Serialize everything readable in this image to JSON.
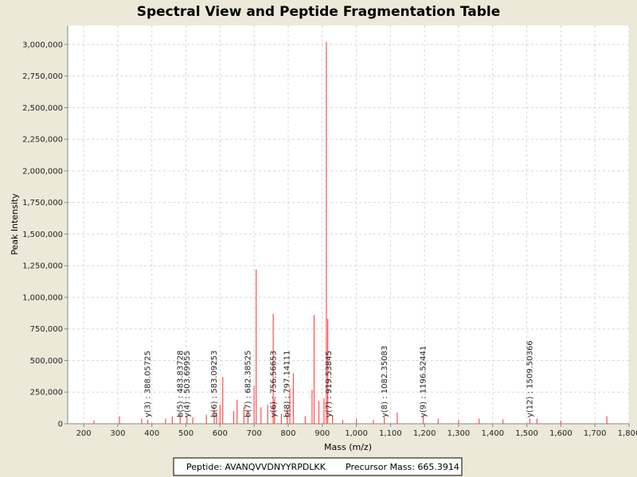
{
  "chart_data": {
    "type": "spectrum",
    "title": "Spectral View and Peptide Fragmentation Table",
    "x_label": "Mass (m/z)",
    "y_label": "Peak Intensity",
    "color": "#ff5050",
    "grid": true,
    "xlim": [
      153,
      1800
    ],
    "ylim": [
      0,
      3150000
    ],
    "xticks": [
      200,
      300,
      400,
      500,
      600,
      700,
      800,
      900,
      {
        "value": 1000,
        "label": "1,000"
      },
      {
        "value": 1100,
        "label": "1,100"
      },
      {
        "value": 1200,
        "label": "1,200"
      },
      {
        "value": 1300,
        "label": "1,300"
      },
      {
        "value": 1400,
        "label": "1,400"
      },
      {
        "value": 1500,
        "label": "1,500"
      },
      {
        "value": 1600,
        "label": "1,600"
      },
      {
        "value": 1700,
        "label": "1,700"
      },
      {
        "value": 1800,
        "label": "1,800"
      }
    ],
    "yticks": [
      0,
      {
        "value": 250000,
        "label": "250,000"
      },
      {
        "value": 500000,
        "label": "500,000"
      },
      {
        "value": 750000,
        "label": "750,000"
      },
      {
        "value": 1000000,
        "label": "1,000,000"
      },
      {
        "value": 1250000,
        "label": "1,250,000"
      },
      {
        "value": 1500000,
        "label": "1,500,000"
      },
      {
        "value": 1750000,
        "label": "1,750,000"
      },
      {
        "value": 2000000,
        "label": "2,000,000"
      },
      {
        "value": 2250000,
        "label": "2,250,000"
      },
      {
        "value": 2500000,
        "label": "2,500,000"
      },
      {
        "value": 2750000,
        "label": "2,750,000"
      },
      {
        "value": 3000000,
        "label": "3,000,000"
      }
    ],
    "x": [
      230,
      305,
      370,
      388,
      440,
      460,
      483,
      503,
      520,
      560,
      583,
      590,
      600,
      608,
      640,
      650,
      670,
      682,
      700,
      706,
      720,
      740,
      756,
      760,
      780,
      797,
      805,
      815,
      850,
      870,
      876,
      890,
      905,
      912,
      916,
      930,
      960,
      1000,
      1050,
      1082,
      1120,
      1196,
      1240,
      1300,
      1360,
      1430,
      1509,
      1530,
      1600,
      1735
    ],
    "values": [
      25000,
      60000,
      40000,
      30000,
      40000,
      60000,
      80000,
      60000,
      50000,
      70000,
      120000,
      90000,
      150000,
      370000,
      100000,
      190000,
      130000,
      110000,
      300000,
      1220000,
      130000,
      150000,
      870000,
      200000,
      80000,
      120000,
      280000,
      400000,
      60000,
      270000,
      860000,
      180000,
      200000,
      3020000,
      830000,
      60000,
      30000,
      40000,
      30000,
      50000,
      90000,
      60000,
      40000,
      30000,
      40000,
      35000,
      40000,
      40000,
      25000,
      60000
    ],
    "annotations": [
      {
        "x": 388.05725,
        "label": "y(3) : 388.05725"
      },
      {
        "x": 483.83728,
        "label": "b(5) : 483.83728"
      },
      {
        "x": 503.69955,
        "label": "y(4) : 503.69955"
      },
      {
        "x": 583.09253,
        "label": "b(6) : 583.09253"
      },
      {
        "x": 682.38525,
        "label": "b(7) : 682.38525"
      },
      {
        "x": 756.56653,
        "label": "y(6) : 756.56653"
      },
      {
        "x": 797.14111,
        "label": "b(8) : 797.14111"
      },
      {
        "x": 919.53845,
        "label": "y(7) : 919.53845"
      },
      {
        "x": 1082.35083,
        "label": "y(8) : 1082.35083"
      },
      {
        "x": 1196.52441,
        "label": "y(9) : 1196.52441"
      },
      {
        "x": 1509.50366,
        "label": "y(12) : 1509.50366"
      }
    ],
    "peptide": "Peptide: AVANQVVDNYYRPDLKK",
    "precursor": "Precursor Mass: 665.3914"
  }
}
